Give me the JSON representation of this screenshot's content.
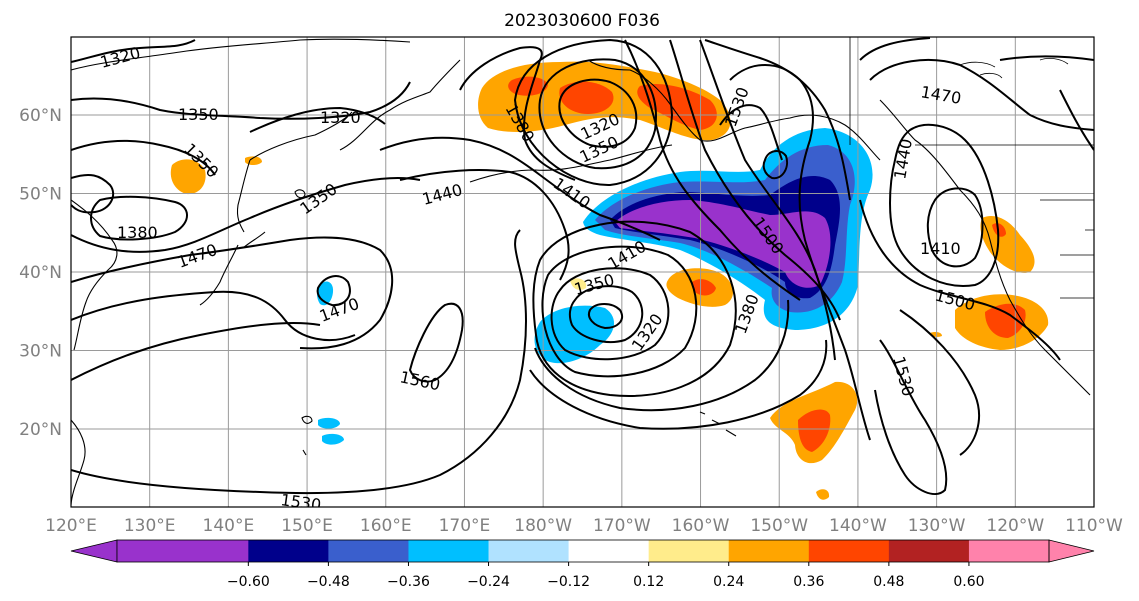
{
  "title": "2023030600 F036",
  "map": {
    "lon_labels": [
      "120°E",
      "130°E",
      "140°E",
      "150°E",
      "160°E",
      "170°E",
      "180°W",
      "170°W",
      "160°W",
      "150°W",
      "140°W",
      "130°W",
      "120°W",
      "110°W"
    ],
    "lat_labels": [
      "60°N",
      "50°N",
      "40°N",
      "30°N",
      "20°N"
    ]
  },
  "contour_labels": [
    {
      "id": "c1320-nw",
      "text": "1320"
    },
    {
      "id": "c1350-w",
      "text": "1350"
    },
    {
      "id": "c1320-n",
      "text": "1320"
    },
    {
      "id": "c1380-ber",
      "text": "1380"
    },
    {
      "id": "c1320-ber",
      "text": "1320"
    },
    {
      "id": "c1350-ber",
      "text": "1350"
    },
    {
      "id": "c1530-ak",
      "text": "1530"
    },
    {
      "id": "c1470-ne",
      "text": "1470"
    },
    {
      "id": "c1440-e",
      "text": "1440"
    },
    {
      "id": "c1380-jp",
      "text": "1380"
    },
    {
      "id": "c1350-jp",
      "text": "1350"
    },
    {
      "id": "c1350-w2",
      "text": "1350"
    },
    {
      "id": "c1440-mid",
      "text": "1440"
    },
    {
      "id": "c1410-mid",
      "text": "1410"
    },
    {
      "id": "c1500-gulf",
      "text": "1500"
    },
    {
      "id": "c1410-ne",
      "text": "1410"
    },
    {
      "id": "c1470-jp",
      "text": "1470"
    },
    {
      "id": "c1470-low",
      "text": "1470"
    },
    {
      "id": "c1410-low",
      "text": "1410"
    },
    {
      "id": "c1350-low",
      "text": "1350"
    },
    {
      "id": "c1320-low",
      "text": "1320"
    },
    {
      "id": "c1380-low",
      "text": "1380"
    },
    {
      "id": "c1500-e",
      "text": "1500"
    },
    {
      "id": "c1560",
      "text": "1560"
    },
    {
      "id": "c1530-e",
      "text": "1530"
    },
    {
      "id": "c1530-s",
      "text": "1530"
    }
  ],
  "colorbar": {
    "colors": [
      "#9932cc",
      "#00008b",
      "#3a5fcd",
      "#00bfff",
      "#b0e2ff",
      "#ffffff",
      "#ffec8b",
      "#ffa500",
      "#ff4500",
      "#b22222",
      "#ff82ab"
    ],
    "labels": [
      "−0.60",
      "−0.48",
      "−0.36",
      "−0.24",
      "−0.12",
      "0.12",
      "0.24",
      "0.36",
      "0.48",
      "0.60"
    ]
  }
}
